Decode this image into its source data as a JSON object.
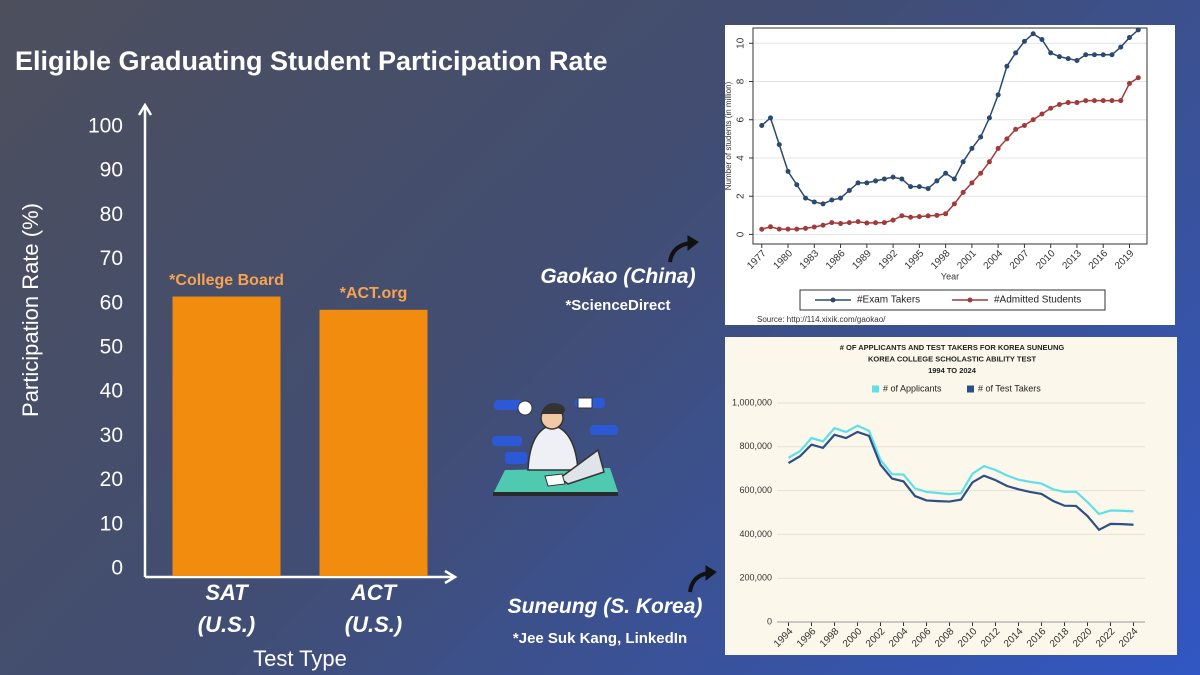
{
  "chart_data": [
    {
      "type": "bar",
      "title": "Eligible Graduating Student Participation Rate",
      "ylabel": "Participation Rate (%)",
      "xlabel": "Test Type",
      "categories": [
        "SAT (U.S.)",
        "ACT (U.S.)"
      ],
      "values": [
        63,
        60
      ],
      "sources": [
        "*College Board",
        "*ACT.org"
      ],
      "color": "#f28c0f",
      "ylim": [
        0,
        100
      ],
      "yticks": [
        0,
        10,
        20,
        30,
        40,
        50,
        60,
        70,
        80,
        90,
        100
      ],
      "grid": false
    },
    {
      "type": "line",
      "ylabel": "Number of students (in million)",
      "xlabel": "Year",
      "source": "Source: http://114.xixik.com/gaokao/",
      "x": [
        1977,
        1978,
        1979,
        1980,
        1981,
        1982,
        1983,
        1984,
        1985,
        1986,
        1987,
        1988,
        1989,
        1990,
        1991,
        1992,
        1993,
        1994,
        1995,
        1996,
        1997,
        1998,
        1999,
        2000,
        2001,
        2002,
        2003,
        2004,
        2005,
        2006,
        2007,
        2008,
        2009,
        2010,
        2011,
        2012,
        2013,
        2014,
        2015,
        2016,
        2017,
        2018,
        2019,
        2020
      ],
      "series": [
        {
          "name": "#Exam Takers",
          "color": "#2b4a6f",
          "values": [
            5.7,
            6.1,
            4.7,
            3.3,
            2.6,
            1.9,
            1.7,
            1.6,
            1.8,
            1.9,
            2.3,
            2.7,
            2.7,
            2.8,
            2.9,
            3.0,
            2.9,
            2.5,
            2.5,
            2.4,
            2.8,
            3.2,
            2.9,
            3.8,
            4.5,
            5.1,
            6.1,
            7.3,
            8.8,
            9.5,
            10.1,
            10.5,
            10.2,
            9.5,
            9.3,
            9.2,
            9.1,
            9.4,
            9.4,
            9.4,
            9.4,
            9.8,
            10.3,
            10.7
          ]
        },
        {
          "name": "#Admitted Students",
          "color": "#a23a3a",
          "values": [
            0.27,
            0.4,
            0.28,
            0.28,
            0.28,
            0.32,
            0.39,
            0.48,
            0.62,
            0.57,
            0.62,
            0.67,
            0.6,
            0.61,
            0.62,
            0.75,
            0.98,
            0.9,
            0.93,
            0.97,
            1.0,
            1.08,
            1.6,
            2.2,
            2.7,
            3.2,
            3.8,
            4.5,
            5.0,
            5.5,
            5.7,
            6.0,
            6.3,
            6.6,
            6.8,
            6.9,
            6.9,
            7.0,
            7.0,
            7.0,
            7.0,
            7.0,
            7.9,
            8.2
          ]
        }
      ],
      "xlim": [
        1976,
        2021
      ],
      "xticks": [
        1977,
        1980,
        1983,
        1986,
        1989,
        1992,
        1995,
        1998,
        2001,
        2004,
        2007,
        2010,
        2013,
        2016,
        2019
      ],
      "ylim": [
        -0.5,
        10.8
      ],
      "yticks": [
        0,
        2,
        4,
        6,
        8,
        10
      ],
      "grid": true,
      "markers": true,
      "legend": "bottom"
    },
    {
      "type": "line",
      "title_lines": [
        "# OF APPLICANTS AND TEST TAKERS FOR KOREA SUNEUNG",
        "KOREA COLLEGE SCHOLASTIC ABILITY TEST",
        "1994 TO 2024"
      ],
      "x": [
        1994,
        1995,
        1996,
        1997,
        1998,
        1999,
        2000,
        2001,
        2002,
        2003,
        2004,
        2005,
        2006,
        2007,
        2008,
        2009,
        2010,
        2011,
        2012,
        2013,
        2014,
        2015,
        2016,
        2017,
        2018,
        2019,
        2020,
        2021,
        2022,
        2023,
        2024
      ],
      "series": [
        {
          "name": "# of Applicants",
          "color": "#5fe0e8",
          "values": [
            750000,
            780000,
            840000,
            825000,
            885000,
            868000,
            896000,
            873000,
            740000,
            675000,
            673000,
            610000,
            594000,
            589000,
            584000,
            588000,
            677000,
            712000,
            694000,
            669000,
            650000,
            640000,
            632000,
            606000,
            594000,
            595000,
            548000,
            493000,
            509000,
            508000,
            505000
          ]
        },
        {
          "name": "# of Test Takers",
          "color": "#2e4f86",
          "values": [
            726000,
            757000,
            810000,
            795000,
            855000,
            840000,
            868000,
            850000,
            718000,
            655000,
            642000,
            575000,
            555000,
            552000,
            550000,
            559000,
            638000,
            668000,
            648000,
            621000,
            606000,
            594000,
            585000,
            553000,
            531000,
            530000,
            484000,
            421000,
            448000,
            447000,
            444000
          ]
        }
      ],
      "xlim": [
        1993,
        2025
      ],
      "xticks": [
        1994,
        1996,
        1998,
        2000,
        2002,
        2004,
        2006,
        2008,
        2010,
        2012,
        2014,
        2016,
        2018,
        2020,
        2022,
        2024
      ],
      "ylim": [
        0,
        1000000
      ],
      "yticks": [
        {
          "value": 0,
          "label": "0"
        },
        {
          "value": 200000,
          "label": "200,000"
        },
        {
          "value": 400000,
          "label": "400,000"
        },
        {
          "value": 600000,
          "label": "600,000"
        },
        {
          "value": 800000,
          "label": "800,000"
        },
        {
          "value": 1000000,
          "label": "1,000,000"
        }
      ],
      "grid": true,
      "markers": false,
      "legend": "top"
    }
  ],
  "captions": [
    {
      "title": "Gaokao (China)",
      "source": "*ScienceDirect"
    },
    {
      "title": "Suneung (S. Korea)",
      "source": "*Jee Suk Kang, LinkedIn"
    }
  ]
}
